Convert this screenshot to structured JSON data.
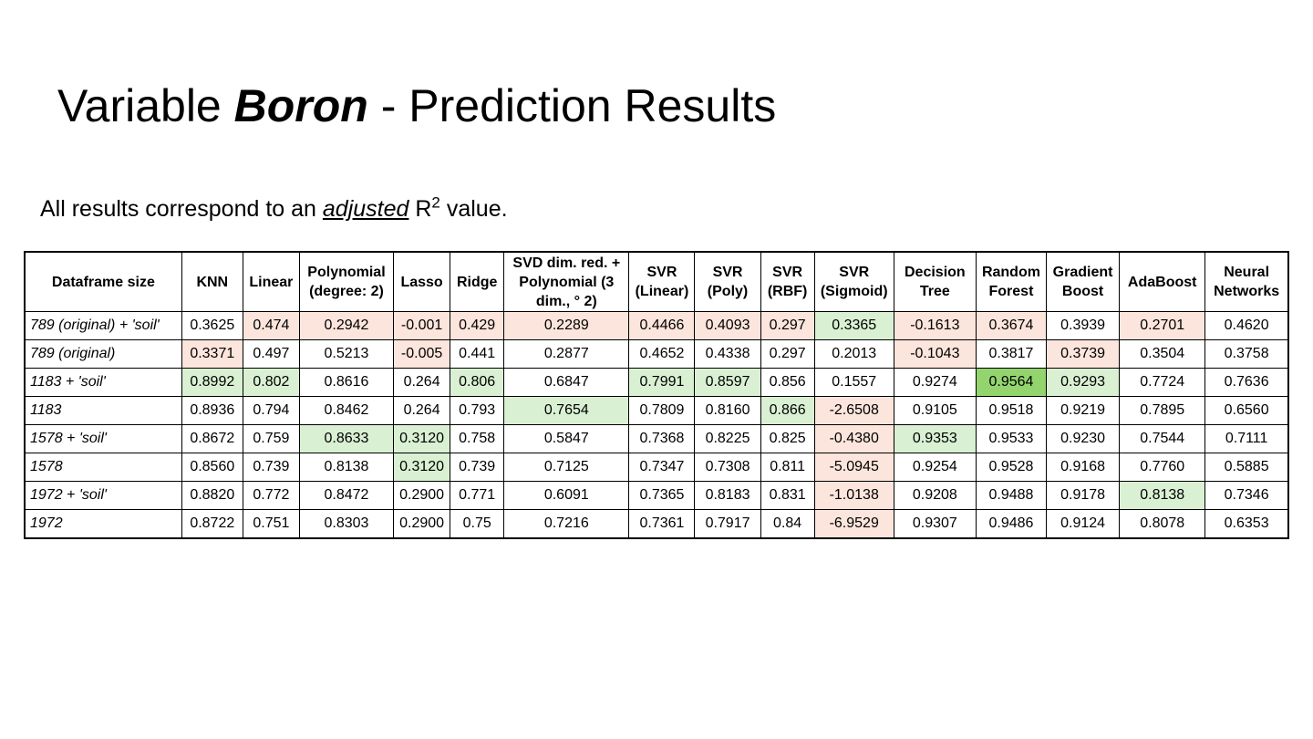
{
  "title": {
    "prefix": "Variable ",
    "emphasis": "Boron",
    "suffix": " - Prediction Results"
  },
  "subtitle": {
    "prefix": "All results correspond to an ",
    "underlined": "adjusted",
    "r": " R",
    "superscript": "2",
    "suffix": " value."
  },
  "colors": {
    "low_highlight": "#fce5dc",
    "high_highlight": "#d9f0d3",
    "best_highlight": "#93d46f"
  },
  "table": {
    "headers": [
      "Dataframe size",
      "KNN",
      "Linear",
      "Polynomial (degree: 2)",
      "Lasso",
      "Ridge",
      "SVD dim. red. + Polynomial (3 dim., ° 2)",
      "SVR (Linear)",
      "SVR (Poly)",
      "SVR (RBF)",
      "SVR (Sigmoid)",
      "Decision Tree",
      "Random Forest",
      "Gradient Boost",
      "AdaBoost",
      "Neural Networks"
    ],
    "rows": [
      {
        "label": "789 (original) + 'soil'",
        "values": [
          "0.3625",
          "0.474",
          "0.2942",
          "-0.001",
          "0.429",
          "0.2289",
          "0.4466",
          "0.4093",
          "0.297",
          "0.3365",
          "-0.1613",
          "0.3674",
          "0.3939",
          "0.2701",
          "0.4620"
        ],
        "highlight": [
          "",
          "red",
          "red",
          "red",
          "red",
          "red",
          "red",
          "red",
          "red",
          "green",
          "red",
          "red",
          "",
          "red",
          ""
        ]
      },
      {
        "label": "789 (original)",
        "values": [
          "0.3371",
          "0.497",
          "0.5213",
          "-0.005",
          "0.441",
          "0.2877",
          "0.4652",
          "0.4338",
          "0.297",
          "0.2013",
          "-0.1043",
          "0.3817",
          "0.3739",
          "0.3504",
          "0.3758"
        ],
        "highlight": [
          "red",
          "",
          "",
          "red",
          "",
          "",
          "",
          "",
          "",
          "",
          "red",
          "",
          "red",
          "",
          ""
        ]
      },
      {
        "label": "1183 + 'soil'",
        "values": [
          "0.8992",
          "0.802",
          "0.8616",
          "0.264",
          "0.806",
          "0.6847",
          "0.7991",
          "0.8597",
          "0.856",
          "0.1557",
          "0.9274",
          "0.9564",
          "0.9293",
          "0.7724",
          "0.7636"
        ],
        "highlight": [
          "green",
          "green",
          "",
          "",
          "green",
          "",
          "green",
          "green",
          "",
          "",
          "",
          "dark",
          "green",
          "",
          ""
        ]
      },
      {
        "label": "1183",
        "values": [
          "0.8936",
          "0.794",
          "0.8462",
          "0.264",
          "0.793",
          "0.7654",
          "0.7809",
          "0.8160",
          "0.866",
          "-2.6508",
          "0.9105",
          "0.9518",
          "0.9219",
          "0.7895",
          "0.6560"
        ],
        "highlight": [
          "",
          "",
          "",
          "",
          "",
          "green",
          "",
          "",
          "green",
          "red",
          "",
          "",
          "",
          "",
          ""
        ]
      },
      {
        "label": "1578 + 'soil'",
        "values": [
          "0.8672",
          "0.759",
          "0.8633",
          "0.3120",
          "0.758",
          "0.5847",
          "0.7368",
          "0.8225",
          "0.825",
          "-0.4380",
          "0.9353",
          "0.9533",
          "0.9230",
          "0.7544",
          "0.7111"
        ],
        "highlight": [
          "",
          "",
          "green",
          "green",
          "",
          "",
          "",
          "",
          "",
          "red",
          "green",
          "",
          "",
          "",
          ""
        ]
      },
      {
        "label": "1578",
        "values": [
          "0.8560",
          "0.739",
          "0.8138",
          "0.3120",
          "0.739",
          "0.7125",
          "0.7347",
          "0.7308",
          "0.811",
          "-5.0945",
          "0.9254",
          "0.9528",
          "0.9168",
          "0.7760",
          "0.5885"
        ],
        "highlight": [
          "",
          "",
          "",
          "green",
          "",
          "",
          "",
          "",
          "",
          "red",
          "",
          "",
          "",
          "",
          ""
        ]
      },
      {
        "label": "1972 + 'soil'",
        "values": [
          "0.8820",
          "0.772",
          "0.8472",
          "0.2900",
          "0.771",
          "0.6091",
          "0.7365",
          "0.8183",
          "0.831",
          "-1.0138",
          "0.9208",
          "0.9488",
          "0.9178",
          "0.8138",
          "0.7346"
        ],
        "highlight": [
          "",
          "",
          "",
          "",
          "",
          "",
          "",
          "",
          "",
          "red",
          "",
          "",
          "",
          "green",
          ""
        ]
      },
      {
        "label": "1972",
        "values": [
          "0.8722",
          "0.751",
          "0.8303",
          "0.2900",
          "0.75",
          "0.7216",
          "0.7361",
          "0.7917",
          "0.84",
          "-6.9529",
          "0.9307",
          "0.9486",
          "0.9124",
          "0.8078",
          "0.6353"
        ],
        "highlight": [
          "",
          "",
          "",
          "",
          "",
          "",
          "",
          "",
          "",
          "red",
          "",
          "",
          "",
          "",
          ""
        ]
      }
    ]
  }
}
